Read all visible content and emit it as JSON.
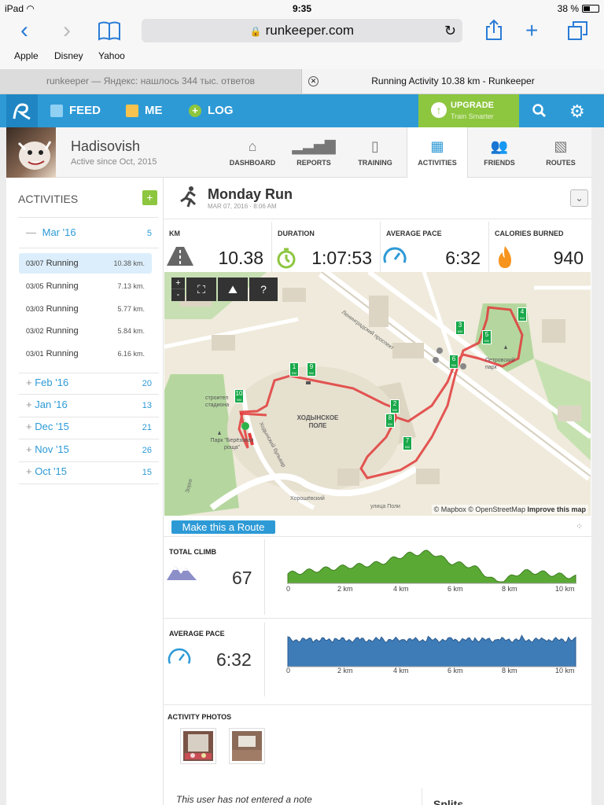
{
  "status": {
    "device": "iPad",
    "time": "9:35",
    "battery": "38 %"
  },
  "browser": {
    "url": "runkeeper.com",
    "bookmarks": [
      "Apple",
      "Disney",
      "Yahoo"
    ],
    "tabs": [
      {
        "label": "runkeeper — Яндекс: нашлось 344 тыс. ответов"
      },
      {
        "label": "Running Activity 10.38 km - Runkeeper"
      }
    ]
  },
  "nav": {
    "feed": "FEED",
    "me": "ME",
    "log": "LOG",
    "upgrade": "UPGRADE",
    "upgrade_sub": "Train Smarter"
  },
  "profile": {
    "name": "Hadisovish",
    "since": "Active since Oct, 2015",
    "tabs": [
      "DASHBOARD",
      "REPORTS",
      "TRAINING",
      "ACTIVITIES",
      "FRIENDS",
      "ROUTES"
    ]
  },
  "sidebar": {
    "title": "ACTIVITIES",
    "add": "+",
    "current_month": {
      "toggle": "—",
      "label": "Mar '16",
      "count": "5"
    },
    "activities": [
      {
        "date": "03/07",
        "type": "Running",
        "km": "10.38 km."
      },
      {
        "date": "03/05",
        "type": "Running",
        "km": "7.13 km."
      },
      {
        "date": "03/03",
        "type": "Running",
        "km": "5.77 km."
      },
      {
        "date": "03/02",
        "type": "Running",
        "km": "5.84 km."
      },
      {
        "date": "03/01",
        "type": "Running",
        "km": "6.16 km."
      }
    ],
    "months": [
      {
        "toggle": "+",
        "label": "Feb '16",
        "count": "20"
      },
      {
        "toggle": "+",
        "label": "Jan '16",
        "count": "13"
      },
      {
        "toggle": "+",
        "label": "Dec '15",
        "count": "21"
      },
      {
        "toggle": "+",
        "label": "Nov '15",
        "count": "26"
      },
      {
        "toggle": "+",
        "label": "Oct '15",
        "count": "15"
      }
    ]
  },
  "activity": {
    "title": "Monday Run",
    "date": "MAR 07, 2016 · 8:06 AM",
    "stats": [
      {
        "label": "KM",
        "value": "10.38"
      },
      {
        "label": "DURATION",
        "value": "1:07:53"
      },
      {
        "label": "AVERAGE PACE",
        "value": "6:32"
      },
      {
        "label": "CALORIES BURNED",
        "value": "940"
      }
    ]
  },
  "map": {
    "controls": {
      "zoom_in": "+",
      "zoom_out": "-",
      "help": "?"
    },
    "labels": {
      "field": "ХОДЫНСКОЕ ПОЛЕ",
      "prospect": "Ленинградский проспект",
      "park_petr": "Петровский парк",
      "park_berioz": "Парк \"Берёзовая роща\"",
      "boulevard": "Ходынский бульвар",
      "street": "Хорошёвский",
      "stadium": "строител стадиона",
      "zor": "Зорге",
      "street2": "улица Поли"
    },
    "attribution": "© Mapbox © OpenStreetMap",
    "improve": "Improve this map",
    "markers": [
      "1",
      "2",
      "3",
      "4",
      "5",
      "6",
      "7",
      "8",
      "9",
      "10"
    ],
    "km_tag": "КМ"
  },
  "make_route": "Make this a Route",
  "climb": {
    "label": "TOTAL CLIMB",
    "value": "67",
    "color": "#5aa935",
    "ticks": [
      "0",
      "2 km",
      "4 km",
      "6 km",
      "8 km",
      "10 km"
    ]
  },
  "pace": {
    "label": "AVERAGE PACE",
    "value": "6:32",
    "color": "#3e7cb8",
    "ticks": [
      "0",
      "2 km",
      "4 km",
      "6 km",
      "8 km",
      "10 km"
    ]
  },
  "photos": {
    "label": "ACTIVITY PHOTOS"
  },
  "note": "This user has not entered a note",
  "splits": "Splits"
}
